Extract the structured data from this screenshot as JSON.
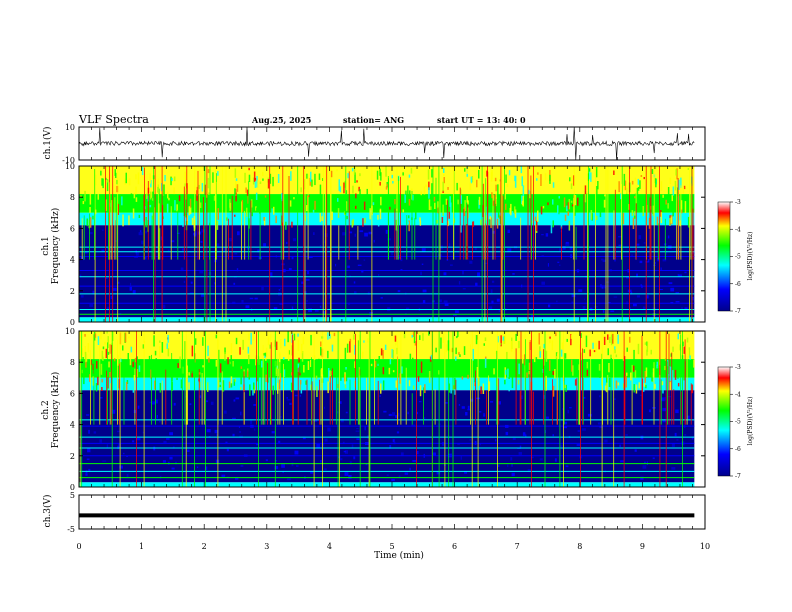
{
  "header": {
    "title": "VLF Spectra",
    "date": "Aug.25, 2025",
    "station": "station= ANG",
    "start": "start  UT =   13: 40: 0"
  },
  "colors": {
    "deep": "#00008b",
    "blue": "#0000ff",
    "cyan": "#00ffff",
    "green": "#00ff00",
    "yellow": "#ffff00",
    "red": "#ff0000"
  },
  "chart_data": [
    {
      "type": "line",
      "panel": "ch1-waveform",
      "ylabel": "ch.1(V)",
      "ylim": [
        -10,
        10
      ],
      "ytick_labels": [
        "10",
        "-10"
      ],
      "baseline": 0
    },
    {
      "type": "heatmap",
      "panel": "ch1-spectrogram",
      "ylabel": "ch.1\nFrequency (kHz)",
      "ylim": [
        0,
        10
      ],
      "ytick_labels": [
        "0",
        "2",
        "4",
        "6",
        "8",
        "10"
      ],
      "colorbar": {
        "label": "log(PSD)(V²/Hz)",
        "range": [
          -7,
          -3
        ],
        "tick_labels": [
          "-3",
          "-4",
          "-5",
          "-6",
          "-7"
        ]
      }
    },
    {
      "type": "heatmap",
      "panel": "ch2-spectrogram",
      "ylabel": "ch.2\nFrequency (kHz)",
      "ylim": [
        0,
        10
      ],
      "ytick_labels": [
        "0",
        "2",
        "4",
        "6",
        "8",
        "10"
      ],
      "colorbar": {
        "label": "log(PSD)(V²/Hz)",
        "range": [
          -7,
          -3
        ],
        "tick_labels": [
          "-3",
          "-4",
          "-5",
          "-6",
          "-7"
        ]
      }
    },
    {
      "type": "line",
      "panel": "ch3-waveform",
      "ylabel": "ch.3(V)",
      "ylim": [
        -5,
        5
      ],
      "ytick_labels": [
        "5",
        "-5"
      ],
      "baseline": -1
    }
  ],
  "xaxis": {
    "label": "Time (min)",
    "range": [
      0,
      10
    ],
    "tick_labels": [
      "0",
      "1",
      "2",
      "3",
      "4",
      "5",
      "6",
      "7",
      "8",
      "9",
      "10"
    ],
    "data_end": 9.83
  }
}
